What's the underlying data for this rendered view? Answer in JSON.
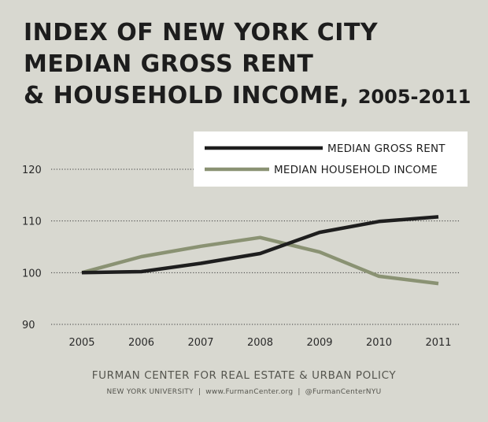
{
  "title": {
    "line1": "INDEX OF NEW YORK CITY",
    "line2": "MEDIAN GROSS RENT",
    "line3_main": "& HOUSEHOLD INCOME, ",
    "line3_years": "2005-2011"
  },
  "chart_data": {
    "type": "line",
    "x": [
      "2005",
      "2006",
      "2007",
      "2008",
      "2009",
      "2010",
      "2011"
    ],
    "ylim": [
      90,
      120
    ],
    "yticks": [
      "90",
      "100",
      "110",
      "120"
    ],
    "grid": "dotted horizontal",
    "legend_position": "top-right",
    "series": [
      {
        "name": "MEDIAN GROSS RENT",
        "color": "#1e1e1e",
        "values": [
          100,
          100.2,
          101.8,
          103.7,
          107.8,
          109.9,
          110.8
        ]
      },
      {
        "name": "MEDIAN HOUSEHOLD INCOME",
        "color": "#8a9273",
        "values": [
          100,
          103.1,
          105.1,
          106.8,
          104.0,
          99.3,
          97.9
        ]
      }
    ]
  },
  "footer": {
    "org": "FURMAN CENTER FOR REAL ESTATE & URBAN POLICY",
    "university": "NEW YORK UNIVERSITY",
    "website": "www.FurmanCenter.org",
    "handle": "@FurmanCenterNYU",
    "separator": "|"
  }
}
